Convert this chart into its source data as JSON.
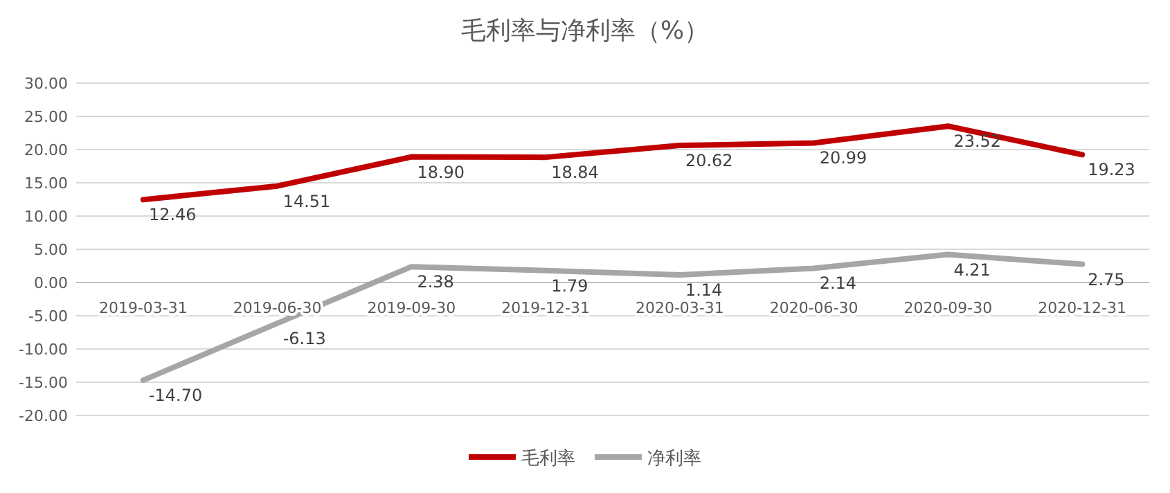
{
  "chart_data": {
    "type": "line",
    "title": "毛利率与净利率（%）",
    "categories": [
      "2019-03-31",
      "2019-06-30",
      "2019-09-30",
      "2019-12-31",
      "2020-03-31",
      "2020-06-30",
      "2020-09-30",
      "2020-12-31"
    ],
    "series": [
      {
        "name": "毛利率",
        "color": "#c00000",
        "values": [
          12.46,
          14.51,
          18.9,
          18.84,
          20.62,
          20.99,
          23.52,
          19.23
        ],
        "value_labels": [
          "12.46",
          "14.51",
          "18.90",
          "18.84",
          "20.62",
          "20.99",
          "23.52",
          "19.23"
        ]
      },
      {
        "name": "净利率",
        "color": "#a6a6a6",
        "values": [
          -14.7,
          -6.13,
          2.38,
          1.79,
          1.14,
          2.14,
          4.21,
          2.75
        ],
        "value_labels": [
          "-14.70",
          "-6.13",
          "2.38",
          "1.79",
          "1.14",
          "2.14",
          "4.21",
          "2.75"
        ]
      }
    ],
    "ylim": [
      -20,
      30
    ],
    "yticks": [
      {
        "value": -20,
        "label": "-20.00"
      },
      {
        "value": -15,
        "label": "-15.00"
      },
      {
        "value": -10,
        "label": "-10.00"
      },
      {
        "value": -5,
        "label": "-5.00"
      },
      {
        "value": 0,
        "label": "0.00"
      },
      {
        "value": 5,
        "label": "5.00"
      },
      {
        "value": 10,
        "label": "10.00"
      },
      {
        "value": 15,
        "label": "15.00"
      },
      {
        "value": 20,
        "label": "20.00"
      },
      {
        "value": 25,
        "label": "25.00"
      },
      {
        "value": 30,
        "label": "30.00"
      }
    ],
    "grid": "y",
    "legend": "bottom",
    "marker": "none",
    "line_style": "solid"
  }
}
